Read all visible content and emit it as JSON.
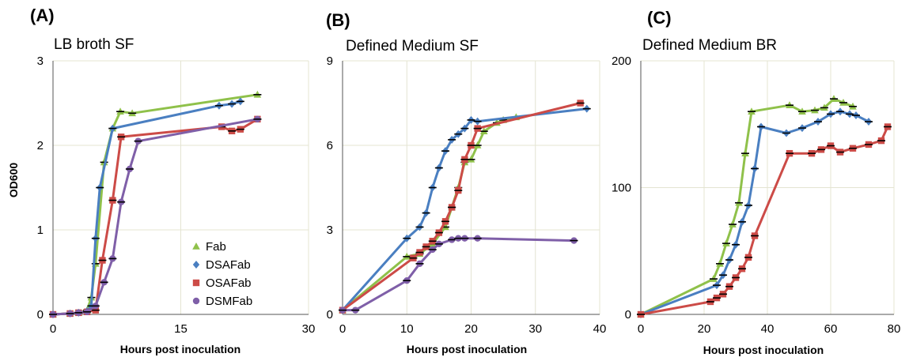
{
  "series_styles": {
    "Fab": {
      "color": "#8fc14a",
      "marker": "triangle"
    },
    "DSAFab": {
      "color": "#4a7fc1",
      "marker": "diamond"
    },
    "OSAFab": {
      "color": "#cc4b47",
      "marker": "square"
    },
    "DSMFab": {
      "color": "#7f5fa8",
      "marker": "circle"
    }
  },
  "chart_data": [
    {
      "type": "line",
      "panel": "(A)",
      "title": "LB broth SF",
      "xlabel": "Hours post inoculation",
      "ylabel": "OD600",
      "xlim": [
        0,
        30
      ],
      "ylim": [
        0,
        3
      ],
      "xticks": [
        0,
        15,
        30
      ],
      "yticks": [
        0,
        1,
        2,
        3
      ],
      "grid": true,
      "legend": {
        "position": "bottom-right",
        "entries": [
          "Fab",
          "DSAFab",
          "OSAFab",
          "DSMFab"
        ]
      },
      "series": [
        {
          "name": "Fab",
          "points": [
            [
              0,
              0
            ],
            [
              2,
              0.01
            ],
            [
              3,
              0.02
            ],
            [
              4,
              0.05
            ],
            [
              4.5,
              0.2
            ],
            [
              5,
              0.6
            ],
            [
              6,
              1.8
            ],
            [
              7,
              2.2
            ],
            [
              7.9,
              2.4
            ],
            [
              9.3,
              2.38
            ],
            [
              24,
              2.6
            ]
          ]
        },
        {
          "name": "DSAFab",
          "points": [
            [
              0,
              0
            ],
            [
              2,
              0.01
            ],
            [
              3,
              0.02
            ],
            [
              4,
              0.04
            ],
            [
              4.5,
              0.1
            ],
            [
              5,
              0.9
            ],
            [
              5.5,
              1.5
            ],
            [
              7,
              2.2
            ],
            [
              19.5,
              2.47
            ],
            [
              21,
              2.49
            ],
            [
              22,
              2.52
            ]
          ]
        },
        {
          "name": "OSAFab",
          "points": [
            [
              0,
              0
            ],
            [
              2,
              0.01
            ],
            [
              3,
              0.02
            ],
            [
              4,
              0.03
            ],
            [
              5,
              0.05
            ],
            [
              5.8,
              0.64
            ],
            [
              7,
              1.35
            ],
            [
              8,
              2.1
            ],
            [
              19.8,
              2.22
            ],
            [
              21,
              2.17
            ],
            [
              22,
              2.19
            ],
            [
              24,
              2.31
            ]
          ]
        },
        {
          "name": "DSMFab",
          "points": [
            [
              0,
              0
            ],
            [
              2,
              0.01
            ],
            [
              3,
              0.02
            ],
            [
              4,
              0.03
            ],
            [
              5,
              0.1
            ],
            [
              6,
              0.38
            ],
            [
              7,
              0.66
            ],
            [
              8,
              1.33
            ],
            [
              9,
              1.72
            ],
            [
              10,
              2.05
            ],
            [
              24,
              2.31
            ]
          ]
        }
      ]
    },
    {
      "type": "line",
      "panel": "(B)",
      "title": "Defined Medium SF",
      "xlabel": "Hours post inoculation",
      "ylabel": "",
      "xlim": [
        0,
        40
      ],
      "ylim": [
        0,
        9
      ],
      "xticks": [
        0,
        10,
        20,
        30,
        40
      ],
      "yticks": [
        0,
        3,
        6,
        9
      ],
      "grid": true,
      "series": [
        {
          "name": "Fab",
          "points": [
            [
              0,
              0.15
            ],
            [
              10,
              2.05
            ],
            [
              12,
              2.15
            ],
            [
              14,
              2.5
            ],
            [
              16,
              3.1
            ],
            [
              17,
              3.8
            ],
            [
              18,
              4.5
            ],
            [
              19,
              5.4
            ],
            [
              20,
              5.5
            ],
            [
              21,
              6
            ],
            [
              22,
              6.5
            ],
            [
              24,
              6.8
            ],
            [
              25,
              6.9
            ],
            [
              27,
              7
            ]
          ]
        },
        {
          "name": "DSAFab",
          "points": [
            [
              0,
              0.15
            ],
            [
              10,
              2.7
            ],
            [
              12,
              3.1
            ],
            [
              13,
              3.6
            ],
            [
              14,
              4.5
            ],
            [
              15,
              5.2
            ],
            [
              16,
              5.8
            ],
            [
              17,
              6.2
            ],
            [
              18,
              6.4
            ],
            [
              19,
              6.6
            ],
            [
              20,
              6.9
            ],
            [
              21,
              6.85
            ],
            [
              38,
              7.3
            ]
          ]
        },
        {
          "name": "OSAFab",
          "points": [
            [
              0,
              0.15
            ],
            [
              11,
              2
            ],
            [
              12,
              2.2
            ],
            [
              13,
              2.4
            ],
            [
              14,
              2.6
            ],
            [
              15,
              2.9
            ],
            [
              16,
              3.3
            ],
            [
              17,
              3.8
            ],
            [
              18,
              4.4
            ],
            [
              19,
              5.5
            ],
            [
              20,
              6
            ],
            [
              21,
              6.6
            ],
            [
              37,
              7.5
            ]
          ]
        },
        {
          "name": "DSMFab",
          "points": [
            [
              0,
              0.15
            ],
            [
              2,
              0.15
            ],
            [
              10,
              1.2
            ],
            [
              12,
              1.8
            ],
            [
              14,
              2.3
            ],
            [
              15,
              2.5
            ],
            [
              17,
              2.65
            ],
            [
              18,
              2.7
            ],
            [
              19,
              2.7
            ],
            [
              21,
              2.7
            ],
            [
              36,
              2.62
            ]
          ]
        }
      ]
    },
    {
      "type": "line",
      "panel": "(C)",
      "title": "Defined Medium BR",
      "xlabel": "Hours post inoculation",
      "ylabel": "",
      "xlim": [
        0,
        80
      ],
      "ylim": [
        0,
        200
      ],
      "xticks": [
        0,
        20,
        40,
        60,
        80
      ],
      "yticks": [
        0,
        100,
        200
      ],
      "grid": true,
      "series": [
        {
          "name": "Fab",
          "points": [
            [
              0,
              0
            ],
            [
              23,
              28
            ],
            [
              25,
              40
            ],
            [
              27,
              56
            ],
            [
              29,
              71
            ],
            [
              31,
              88
            ],
            [
              33,
              127
            ],
            [
              35,
              160
            ],
            [
              47,
              165
            ],
            [
              51,
              160
            ],
            [
              55,
              161
            ],
            [
              58,
              163
            ],
            [
              61,
              170
            ],
            [
              64,
              167
            ],
            [
              67,
              164
            ]
          ]
        },
        {
          "name": "DSAFab",
          "points": [
            [
              0,
              0
            ],
            [
              24,
              23
            ],
            [
              26,
              31
            ],
            [
              28,
              43
            ],
            [
              30,
              55
            ],
            [
              32,
              73
            ],
            [
              34,
              86
            ],
            [
              36,
              115
            ],
            [
              38,
              148
            ],
            [
              46,
              143
            ],
            [
              51,
              147
            ],
            [
              56,
              152
            ],
            [
              60,
              158
            ],
            [
              63,
              160
            ],
            [
              66,
              158
            ],
            [
              68,
              157
            ],
            [
              72,
              152
            ]
          ]
        },
        {
          "name": "OSAFab",
          "points": [
            [
              0,
              0
            ],
            [
              22,
              10
            ],
            [
              24,
              13
            ],
            [
              26,
              16
            ],
            [
              28,
              22
            ],
            [
              30,
              29
            ],
            [
              32,
              36
            ],
            [
              34,
              45
            ],
            [
              36,
              62
            ],
            [
              47,
              127
            ],
            [
              54,
              127
            ],
            [
              57,
              130
            ],
            [
              60,
              133
            ],
            [
              63,
              128
            ],
            [
              67,
              131
            ],
            [
              72,
              134
            ],
            [
              76,
              137
            ],
            [
              78,
              148
            ]
          ]
        }
      ]
    }
  ]
}
